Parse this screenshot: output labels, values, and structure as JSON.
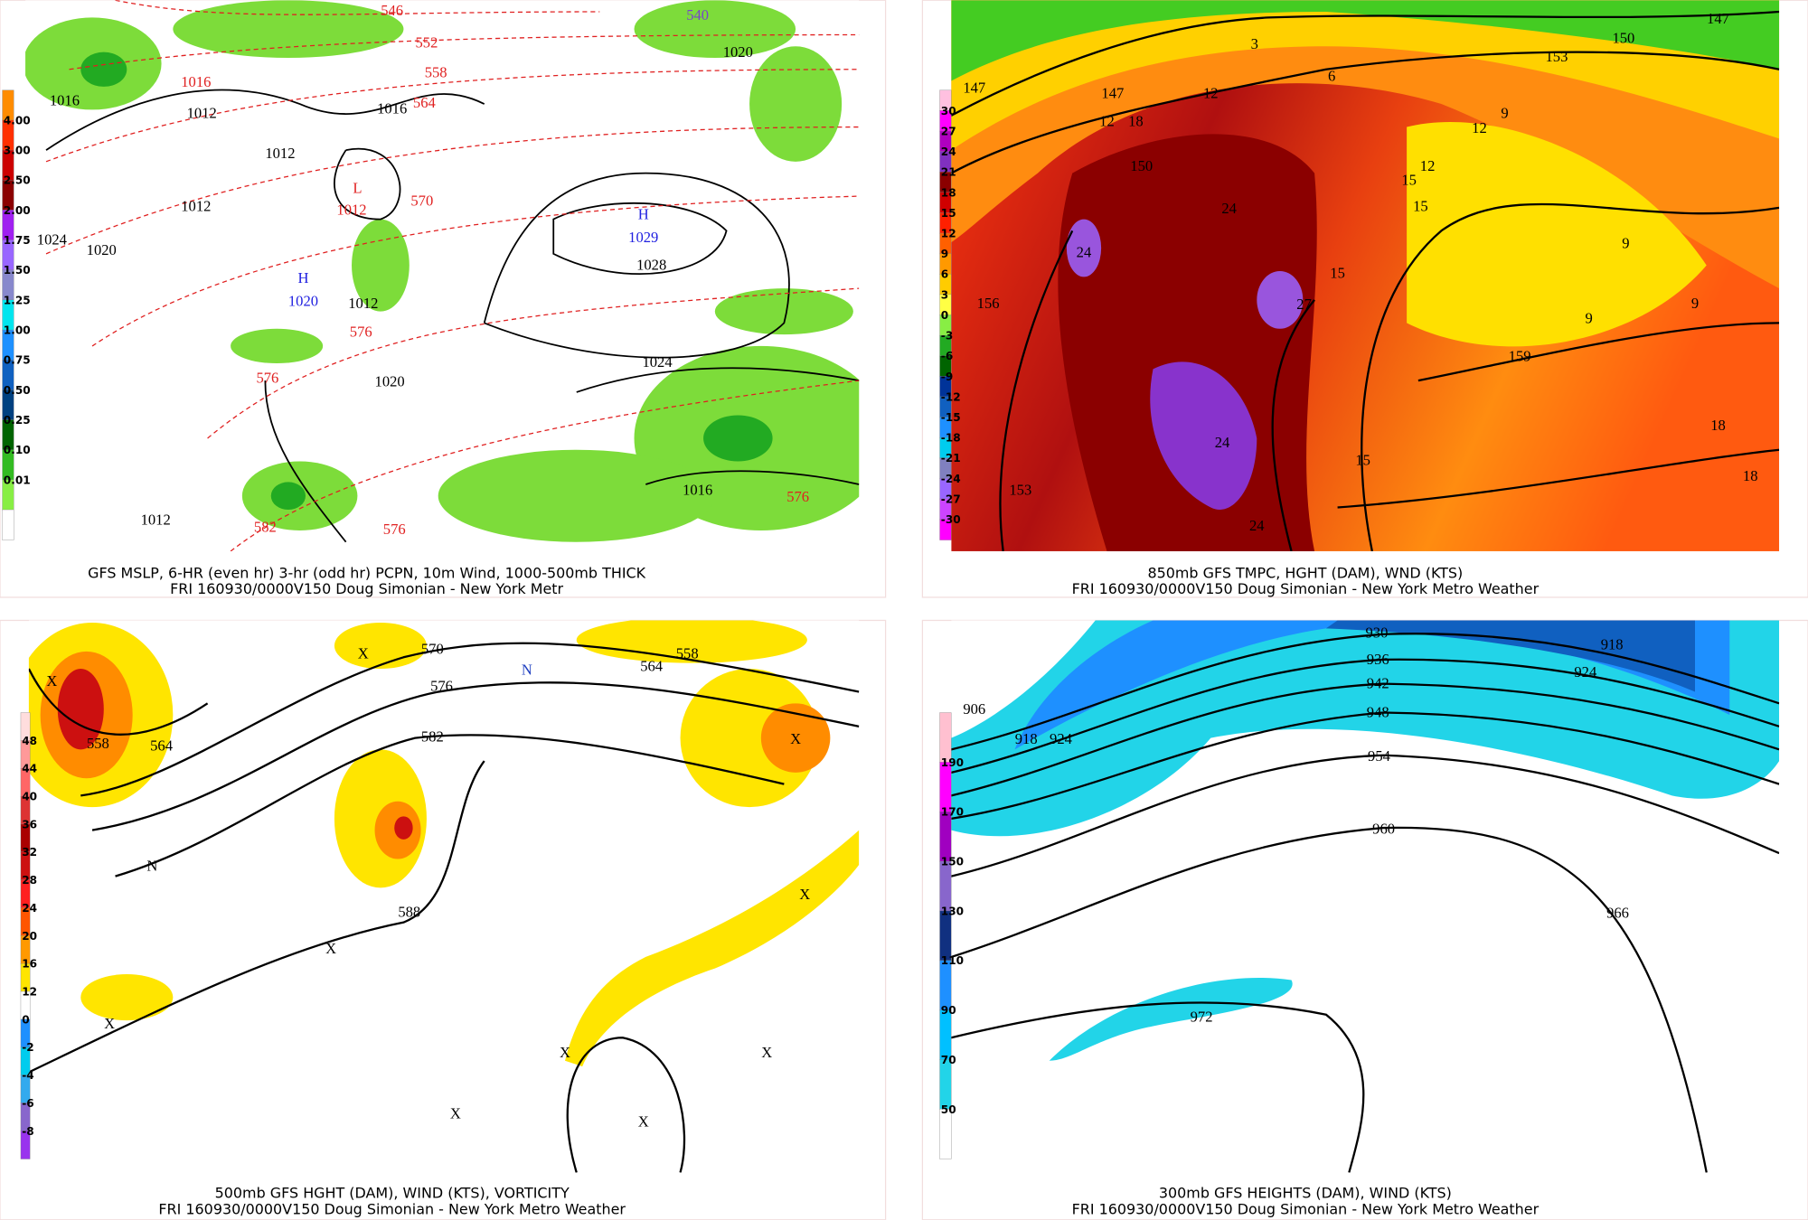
{
  "panels": [
    {
      "caption": "GFS MSLP, 6-HR (even hr) 3-hr (odd hr) PCPN, 10m Wind, 1000-500mb THICK",
      "subcaption": "FRI 160930/0000V150 Doug Simonian - New York Metr",
      "colorbar": [
        "4.00",
        "3.00",
        "2.50",
        "2.00",
        "1.75",
        "1.50",
        "1.25",
        "1.00",
        "0.75",
        "0.50",
        "0.25",
        "0.10",
        "0.01"
      ],
      "labels": [
        "546",
        "552",
        "558",
        "564",
        "570",
        "576",
        "576",
        "582",
        "576",
        "576",
        "540",
        "1016",
        "1012",
        "1012",
        "1012",
        "1012",
        "1020",
        "1024",
        "1016",
        "1012",
        "1020",
        "1024",
        "1020",
        "1016",
        "1028",
        "L",
        "1012",
        "H",
        "1029",
        "H",
        "1020",
        "1016"
      ]
    },
    {
      "caption": "850mb GFS TMPC, HGHT (DAM), WND (KTS)",
      "subcaption": "FRI 160930/0000V150 Doug Simonian - New York Metro Weather",
      "colorbar": [
        "30",
        "27",
        "24",
        "21",
        "18",
        "15",
        "12",
        "9",
        "6",
        "3",
        "0",
        "-3",
        "-6",
        "-9",
        "-12",
        "-15",
        "-18",
        "-21",
        "-24",
        "-27",
        "-30"
      ],
      "labels": [
        "147",
        "153",
        "156",
        "150",
        "159",
        "150",
        "153",
        "147",
        "12",
        "3",
        "6",
        "9",
        "12",
        "15",
        "15",
        "12",
        "9",
        "9",
        "9",
        "18",
        "18",
        "15",
        "15",
        "24",
        "24",
        "27",
        "24",
        "24",
        "147",
        "12",
        "18"
      ]
    },
    {
      "caption": "500mb GFS HGHT (DAM), WIND (KTS), VORTICITY",
      "subcaption": "FRI 160930/0000V150 Doug Simonian - New York Metro Weather",
      "colorbar": [
        "48",
        "44",
        "40",
        "36",
        "32",
        "28",
        "24",
        "20",
        "16",
        "12",
        "0",
        "-2",
        "-4",
        "-6",
        "-8"
      ],
      "labels": [
        "570",
        "576",
        "582",
        "588",
        "564",
        "558",
        "558",
        "564",
        "N",
        "X",
        "X",
        "X",
        "X",
        "X",
        "X",
        "X",
        "X",
        "X",
        "X",
        "N"
      ]
    },
    {
      "caption": "300mb GFS HEIGHTS (DAM), WIND (KTS)",
      "subcaption": "FRI 160930/0000V150 Doug Simonian - New York Metro Weather",
      "colorbar": [
        "190",
        "170",
        "150",
        "130",
        "110",
        "90",
        "70",
        "50"
      ],
      "labels": [
        "930",
        "936",
        "942",
        "948",
        "954",
        "960",
        "966",
        "972",
        "918",
        "924",
        "906",
        "918",
        "924"
      ]
    }
  ]
}
